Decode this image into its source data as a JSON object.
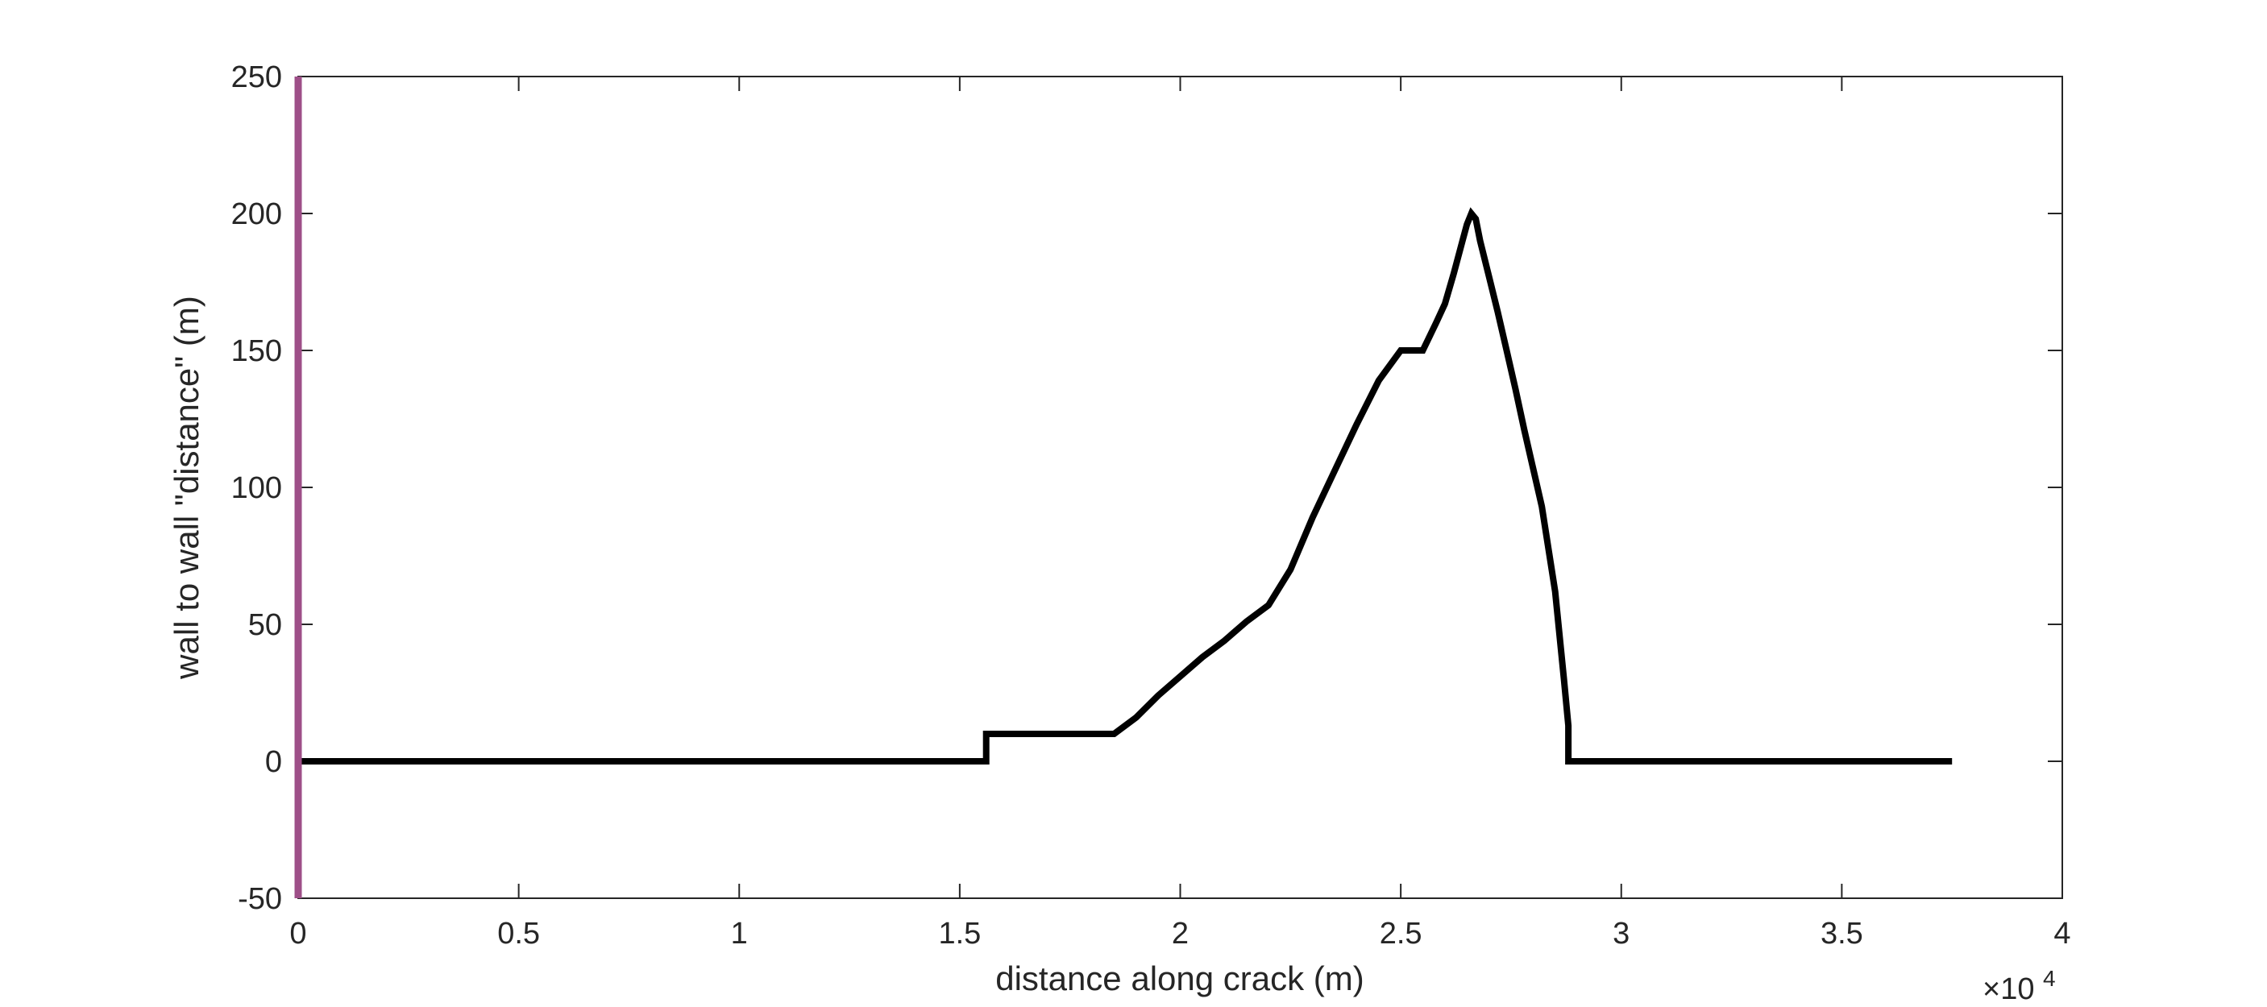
{
  "chart_data": {
    "type": "line",
    "title": "",
    "xlabel": "distance along crack (m)",
    "ylabel": "wall to wall \"distance\" (m)",
    "x_exponent_label": "×10",
    "x_exponent_power": "4",
    "xlim": [
      0,
      40000
    ],
    "ylim": [
      -50,
      250
    ],
    "grid": false,
    "legend": "none",
    "x_ticks": [
      0,
      5000,
      10000,
      15000,
      20000,
      25000,
      30000,
      35000,
      40000
    ],
    "x_tick_labels": [
      "0",
      "0.5",
      "1",
      "1.5",
      "2",
      "2.5",
      "3",
      "3.5",
      "4"
    ],
    "y_ticks": [
      -50,
      0,
      50,
      100,
      150,
      200,
      250
    ],
    "y_tick_labels": [
      "-50",
      "0",
      "50",
      "100",
      "150",
      "200",
      "250"
    ],
    "colors": {
      "series": "#000000",
      "marker_line": "#9e4f88",
      "axes": "#262626"
    },
    "vertical_marker": {
      "x": 0,
      "color": "#9e4f88"
    },
    "series": [
      {
        "color": "#000000",
        "x": [
          0,
          15600,
          15600,
          18500,
          19000,
          19500,
          20000,
          20500,
          21000,
          21500,
          22000,
          22500,
          23000,
          23500,
          24000,
          24500,
          25000,
          25500,
          25800,
          26000,
          26200,
          26400,
          26500,
          26600,
          26700,
          26800,
          27000,
          27200,
          27400,
          27600,
          27800,
          28000,
          28200,
          28500,
          28700,
          28800,
          28800,
          37500
        ],
        "y": [
          0,
          0,
          10,
          10,
          16,
          24,
          31,
          38,
          44,
          51,
          57,
          70,
          89,
          106,
          123,
          139,
          150,
          150,
          160,
          167,
          178,
          190,
          196,
          200,
          198,
          190,
          177,
          164,
          150,
          136,
          121,
          107,
          93,
          62,
          30,
          13,
          0,
          0
        ]
      }
    ]
  }
}
